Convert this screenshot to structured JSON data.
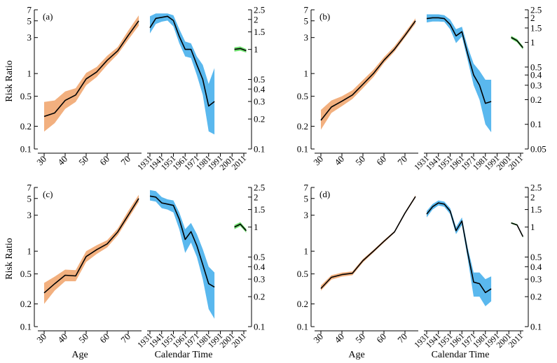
{
  "figure": {
    "left_axis_label": "Risk Ratio",
    "age_xlabel": "Age",
    "time_xlabel": "Calendar Time"
  },
  "colors": {
    "age_band": "#f2b07f",
    "period_band": "#5ab8ee",
    "cohort_band": "#6fe06f",
    "line": "#000000"
  },
  "left_ticks": {
    "values": [
      0.1,
      0.2,
      0.5,
      1,
      3,
      5,
      7
    ],
    "labels": [
      "0.1",
      "0.2",
      "0.5",
      "1",
      "3",
      "5",
      "7"
    ]
  },
  "age_ticks": {
    "values": [
      30,
      40,
      50,
      60,
      70
    ],
    "labels": [
      "30",
      "40",
      "50",
      "60",
      "70"
    ]
  },
  "time_ticks": {
    "values": [
      1931,
      1941,
      1951,
      1961,
      1971,
      1981,
      1991,
      2001,
      2011
    ],
    "labels": [
      "1931",
      "1941",
      "1951",
      "1961",
      "1971",
      "1981",
      "1991",
      "2001",
      "2011"
    ]
  },
  "chart_data": [
    {
      "type": "line",
      "panel_label": "(a)",
      "age": {
        "x": [
          30,
          35,
          40,
          45,
          50,
          55,
          60,
          65,
          70,
          75
        ],
        "y": [
          0.27,
          0.3,
          0.44,
          0.52,
          0.85,
          1.05,
          1.5,
          2.0,
          3.2,
          5.0
        ],
        "lower": [
          0.17,
          0.22,
          0.34,
          0.42,
          0.7,
          0.9,
          1.3,
          1.8,
          2.8,
          4.3
        ],
        "upper": [
          0.42,
          0.44,
          0.58,
          0.64,
          1.02,
          1.22,
          1.72,
          2.25,
          3.7,
          5.9
        ]
      },
      "period": {
        "x": [
          1931,
          1936,
          1941,
          1946,
          1951,
          1956,
          1961,
          1966,
          1971,
          1976,
          1981,
          1986
        ],
        "y": [
          1.65,
          2.05,
          2.1,
          2.15,
          1.95,
          1.35,
          1.0,
          1.0,
          0.7,
          0.5,
          0.27,
          0.3
        ],
        "lower": [
          1.45,
          1.8,
          1.9,
          1.95,
          1.7,
          1.15,
          0.85,
          0.82,
          0.55,
          0.35,
          0.15,
          0.14
        ],
        "upper": [
          2.15,
          2.3,
          2.3,
          2.3,
          2.2,
          1.6,
          1.2,
          1.15,
          0.85,
          0.7,
          0.45,
          0.65
        ]
      },
      "cohort": {
        "x": [
          2003,
          2008,
          2013
        ],
        "y": [
          1.0,
          1.02,
          0.97
        ],
        "lower": [
          0.95,
          0.97,
          0.93
        ],
        "upper": [
          1.05,
          1.07,
          1.01
        ]
      },
      "right_ticks": {
        "values": [
          0.1,
          0.2,
          0.3,
          0.4,
          0.5,
          1,
          1.5,
          2,
          2.5
        ],
        "labels": [
          "0.1",
          "0.2",
          "0.3",
          "0.4",
          "0.5",
          "1",
          "1.5",
          "2",
          "2.5"
        ]
      }
    },
    {
      "type": "line",
      "panel_label": "(b)",
      "age": {
        "x": [
          30,
          35,
          40,
          45,
          50,
          55,
          60,
          65,
          70,
          75
        ],
        "y": [
          0.24,
          0.36,
          0.43,
          0.52,
          0.72,
          1.0,
          1.5,
          2.1,
          3.2,
          5.0
        ],
        "lower": [
          0.18,
          0.3,
          0.37,
          0.46,
          0.64,
          0.9,
          1.38,
          1.95,
          3.0,
          4.6
        ],
        "upper": [
          0.33,
          0.44,
          0.5,
          0.6,
          0.82,
          1.12,
          1.65,
          2.3,
          3.5,
          5.4
        ]
      },
      "period": {
        "x": [
          1931,
          1936,
          1941,
          1946,
          1951,
          1956,
          1961,
          1966,
          1971,
          1976,
          1981,
          1986
        ],
        "y": [
          1.95,
          2.0,
          2.0,
          1.95,
          1.65,
          1.2,
          1.35,
          0.72,
          0.4,
          0.3,
          0.18,
          0.19
        ],
        "lower": [
          1.75,
          1.8,
          1.8,
          1.78,
          1.45,
          0.98,
          1.18,
          0.6,
          0.3,
          0.2,
          0.1,
          0.08
        ],
        "upper": [
          2.2,
          2.2,
          2.2,
          2.15,
          1.9,
          1.45,
          1.55,
          0.88,
          0.55,
          0.45,
          0.35,
          0.35
        ]
      },
      "cohort": {
        "x": [
          2003,
          2008,
          2013
        ],
        "y": [
          1.15,
          1.05,
          0.86
        ],
        "lower": [
          1.1,
          1.0,
          0.82
        ],
        "upper": [
          1.2,
          1.1,
          0.9
        ]
      },
      "right_ticks": {
        "values": [
          0.05,
          0.1,
          0.2,
          0.3,
          0.4,
          0.5,
          1,
          1.5,
          2,
          2.5
        ],
        "labels": [
          "0.05",
          "0.1",
          "0.2",
          "0.3",
          "0.4",
          "0.5",
          "1",
          "1.5",
          "2",
          "2.5"
        ]
      }
    },
    {
      "type": "line",
      "panel_label": "(c)",
      "age": {
        "x": [
          30,
          35,
          40,
          45,
          50,
          55,
          60,
          65,
          70,
          75
        ],
        "y": [
          0.28,
          0.37,
          0.48,
          0.47,
          0.85,
          1.05,
          1.25,
          1.8,
          3.0,
          5.0
        ],
        "lower": [
          0.2,
          0.3,
          0.4,
          0.4,
          0.72,
          0.92,
          1.12,
          1.62,
          2.7,
          4.5
        ],
        "upper": [
          0.38,
          0.46,
          0.57,
          0.56,
          1.0,
          1.2,
          1.4,
          2.0,
          3.4,
          5.6
        ]
      },
      "period": {
        "x": [
          1931,
          1936,
          1941,
          1946,
          1951,
          1956,
          1961,
          1966,
          1971,
          1976,
          1981,
          1986
        ],
        "y": [
          2.05,
          2.0,
          1.75,
          1.7,
          1.65,
          1.2,
          0.75,
          0.9,
          0.65,
          0.42,
          0.27,
          0.25
        ],
        "lower": [
          1.85,
          1.8,
          1.55,
          1.5,
          1.4,
          0.95,
          0.55,
          0.7,
          0.5,
          0.3,
          0.15,
          0.12
        ],
        "upper": [
          2.35,
          2.3,
          2.0,
          1.9,
          1.85,
          1.4,
          0.95,
          1.1,
          0.85,
          0.6,
          0.4,
          0.35
        ]
      },
      "cohort": {
        "x": [
          2003,
          2008,
          2013
        ],
        "y": [
          1.0,
          1.07,
          0.92
        ],
        "lower": [
          0.95,
          1.02,
          0.88
        ],
        "upper": [
          1.05,
          1.12,
          0.96
        ]
      },
      "right_ticks": {
        "values": [
          0.1,
          0.2,
          0.3,
          0.4,
          0.5,
          1,
          1.5,
          2,
          2.5
        ],
        "labels": [
          "0.1",
          "0.2",
          "0.3",
          "0.4",
          "0.5",
          "1",
          "1.5",
          "2",
          "2.5"
        ]
      }
    },
    {
      "type": "line",
      "panel_label": "(d)",
      "age": {
        "x": [
          30,
          35,
          40,
          45,
          50,
          55,
          60,
          65,
          70,
          75
        ],
        "y": [
          0.32,
          0.45,
          0.49,
          0.51,
          0.75,
          1.0,
          1.35,
          1.8,
          3.2,
          5.3
        ],
        "lower": [
          0.3,
          0.42,
          0.46,
          0.48,
          0.71,
          0.96,
          1.3,
          1.75,
          3.1,
          5.1
        ],
        "upper": [
          0.35,
          0.48,
          0.52,
          0.54,
          0.79,
          1.04,
          1.4,
          1.85,
          3.3,
          5.5
        ]
      },
      "period": {
        "x": [
          1931,
          1936,
          1941,
          1946,
          1951,
          1956,
          1961,
          1966,
          1971,
          1976,
          1981,
          1986
        ],
        "y": [
          1.35,
          1.6,
          1.75,
          1.7,
          1.45,
          0.92,
          1.15,
          0.55,
          0.28,
          0.27,
          0.22,
          0.24
        ],
        "lower": [
          1.25,
          1.5,
          1.65,
          1.6,
          1.35,
          0.85,
          1.05,
          0.48,
          0.2,
          0.2,
          0.16,
          0.18
        ],
        "upper": [
          1.45,
          1.7,
          1.85,
          1.8,
          1.55,
          1.0,
          1.25,
          0.62,
          0.35,
          0.35,
          0.3,
          0.32
        ]
      },
      "cohort": {
        "x": [
          2003,
          2008,
          2013
        ],
        "y": [
          1.1,
          1.05,
          0.8
        ],
        "lower": [
          1.08,
          1.03,
          0.78
        ],
        "upper": [
          1.12,
          1.07,
          0.82
        ]
      },
      "right_ticks": {
        "values": [
          0.1,
          0.2,
          0.3,
          0.4,
          0.5,
          1,
          1.5,
          2,
          2.5
        ],
        "labels": [
          "0.1",
          "0.2",
          "0.3",
          "0.4",
          "0.5",
          "1",
          "1.5",
          "2",
          "2.5"
        ]
      }
    }
  ]
}
